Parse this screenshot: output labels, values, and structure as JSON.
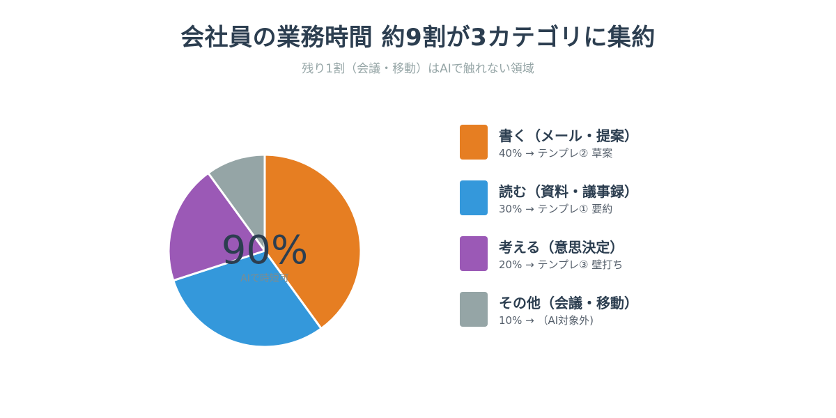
{
  "chart_data": {
    "type": "pie",
    "title": "会社員の業務時間 約9割が3カテゴリに集約",
    "subtitle": "残り1割（会議・移動）はAIで触れない領域",
    "center_value": "90%",
    "center_caption": "AIで時短可",
    "slices": [
      {
        "label": "書く（メール・提案）",
        "value": 40,
        "description": "40% → テンプレ② 草案",
        "color": "#e67e22"
      },
      {
        "label": "読む（資料・議事録）",
        "value": 30,
        "description": "30% → テンプレ① 要約",
        "color": "#3498db"
      },
      {
        "label": "考える（意思決定）",
        "value": 20,
        "description": "20% → テンプレ③ 壁打ち",
        "color": "#9b59b6"
      },
      {
        "label": "その他（会議・移動）",
        "value": 10,
        "description": "10% → （AI対象外)",
        "color": "#95a5a6"
      }
    ]
  }
}
